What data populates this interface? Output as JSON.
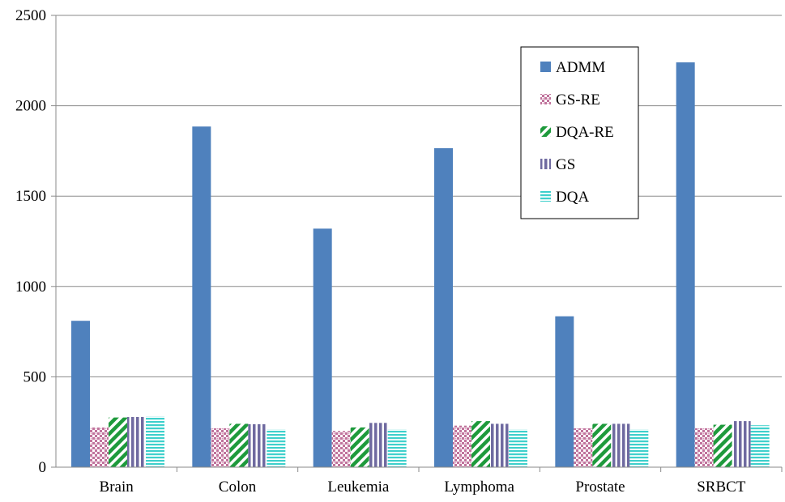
{
  "chart_data": {
    "type": "bar",
    "title": "",
    "xlabel": "",
    "ylabel": "",
    "ylim": [
      0,
      2500
    ],
    "yticks": [
      0,
      500,
      1000,
      1500,
      2000,
      2500
    ],
    "grid": "horizontal",
    "legend_position": "top-right",
    "categories": [
      "Brain",
      "Colon",
      "Leukemia",
      "Lymphoma",
      "Prostate",
      "SRBCT"
    ],
    "series": [
      {
        "name": "ADMM",
        "values": [
          810,
          1885,
          1320,
          1765,
          835,
          2240
        ],
        "color": "#4f81bd",
        "pattern": "solid"
      },
      {
        "name": "GS-RE",
        "values": [
          220,
          215,
          200,
          230,
          215,
          215
        ],
        "color": "#c0739c",
        "pattern": "checker"
      },
      {
        "name": "DQA-RE",
        "values": [
          275,
          240,
          220,
          255,
          240,
          235
        ],
        "color": "#1e9a3c",
        "pattern": "diagonal"
      },
      {
        "name": "GS",
        "values": [
          278,
          238,
          245,
          240,
          240,
          255
        ],
        "color": "#6f6aa0",
        "pattern": "vertical"
      },
      {
        "name": "DQA",
        "values": [
          282,
          210,
          210,
          210,
          210,
          232
        ],
        "color": "#3fd0cc",
        "pattern": "horizontal"
      }
    ]
  }
}
